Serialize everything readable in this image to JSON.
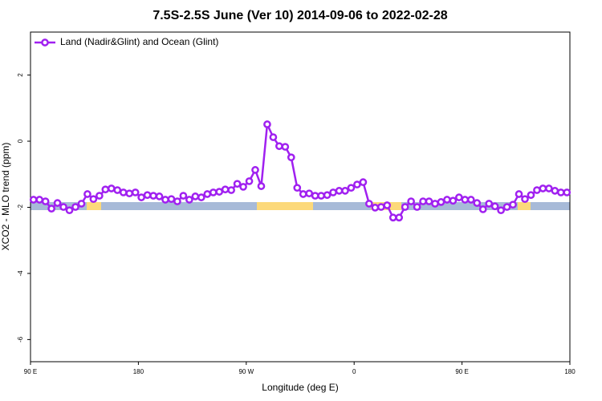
{
  "chart_data": {
    "type": "line",
    "title": "7.5S-2.5S June (Ver 10)   2014-09-06 to 2022-02-28",
    "x_label": "Longitude (deg E)",
    "y_label": "XCO2 - MLO trend (ppm)",
    "x": [
      92.5,
      97.5,
      102.5,
      107.5,
      112.5,
      117.5,
      122.5,
      127.5,
      132.5,
      137.5,
      142.5,
      147.5,
      152.5,
      157.5,
      162.5,
      167.5,
      172.5,
      177.5,
      182.5,
      187.5,
      192.5,
      197.5,
      202.5,
      207.5,
      212.5,
      217.5,
      222.5,
      227.5,
      232.5,
      237.5,
      242.5,
      247.5,
      252.5,
      257.5,
      262.5,
      267.5,
      272.5,
      277.5,
      282.5,
      287.5,
      292.5,
      297.5,
      302.5,
      307.5,
      312.5,
      317.5,
      322.5,
      327.5,
      332.5,
      337.5,
      342.5,
      347.5,
      352.5,
      357.5,
      362.5,
      367.5,
      372.5,
      377.5,
      382.5,
      387.5,
      392.5,
      397.5,
      402.5,
      407.5,
      412.5,
      417.5,
      422.5,
      427.5,
      432.5,
      437.5,
      442.5,
      447.5,
      452.5,
      457.5,
      462.5,
      467.5,
      472.5,
      477.5,
      482.5,
      487.5,
      492.5,
      497.5,
      502.5,
      507.5,
      512.5,
      517.5,
      522.5,
      527.5,
      532.5,
      537.5
    ],
    "series": [
      {
        "name": "Land (Nadir&Glint) and Ocean (Glint)",
        "color": "#a020f0",
        "values": [
          -1.77,
          -1.77,
          -1.82,
          -2.04,
          -1.87,
          -1.99,
          -2.09,
          -1.99,
          -1.89,
          -1.6,
          -1.75,
          -1.65,
          -1.46,
          -1.43,
          -1.48,
          -1.55,
          -1.58,
          -1.55,
          -1.7,
          -1.63,
          -1.65,
          -1.67,
          -1.77,
          -1.75,
          -1.82,
          -1.65,
          -1.77,
          -1.67,
          -1.7,
          -1.6,
          -1.55,
          -1.53,
          -1.46,
          -1.48,
          -1.29,
          -1.38,
          -1.21,
          -0.87,
          -1.36,
          0.51,
          0.12,
          -0.15,
          -0.17,
          -0.49,
          -1.41,
          -1.6,
          -1.58,
          -1.65,
          -1.65,
          -1.63,
          -1.55,
          -1.5,
          -1.5,
          -1.41,
          -1.31,
          -1.24,
          -1.89,
          -2.01,
          -1.99,
          -1.94,
          -2.31,
          -2.31,
          -1.99,
          -1.82,
          -1.99,
          -1.82,
          -1.82,
          -1.89,
          -1.84,
          -1.77,
          -1.8,
          -1.7,
          -1.77,
          -1.77,
          -1.87,
          -2.06,
          -1.89,
          -1.97,
          -2.09,
          -1.99,
          -1.92,
          -1.6,
          -1.75,
          -1.63,
          -1.48,
          -1.43,
          -1.43,
          -1.5,
          -1.55,
          -1.55
        ]
      }
    ],
    "xlim": [
      90,
      540
    ],
    "xticks": [
      {
        "value": 90,
        "label": "90 E"
      },
      180,
      {
        "value": 270,
        "label": "90 W"
      },
      {
        "value": 360,
        "label": "0"
      },
      {
        "value": 450,
        "label": "90 E"
      },
      {
        "value": 540,
        "label": "180"
      }
    ],
    "ylim": [
      -6.67,
      3.3
    ],
    "yticks": [
      -6,
      -4,
      -2,
      0,
      2
    ],
    "legend": "top-left"
  }
}
